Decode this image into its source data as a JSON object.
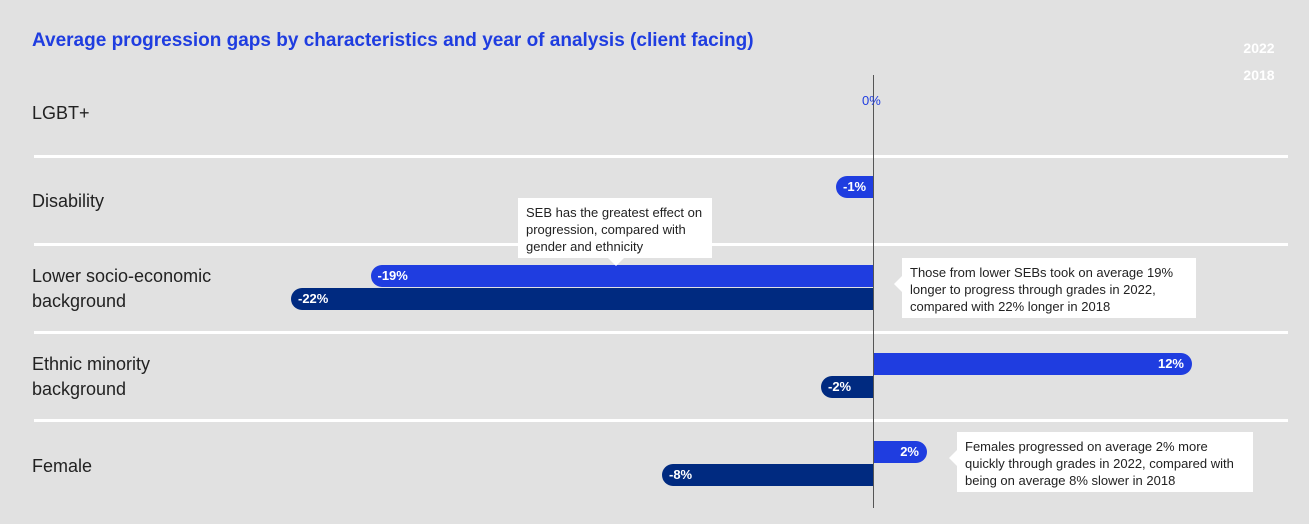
{
  "chart_data": {
    "type": "bar",
    "orientation": "horizontal",
    "title": "Average progression gaps by characteristics and year of analysis (client facing)",
    "zero_label": "0%",
    "categories": [
      "LGBT+",
      "Disability",
      "Lower socio-economic background",
      "Ethnic minority background",
      "Female"
    ],
    "series": [
      {
        "name": "2022",
        "color": "#1f3de0",
        "values": [
          null,
          -1,
          -19,
          12,
          2
        ]
      },
      {
        "name": "2018",
        "color": "#002a80",
        "values": [
          null,
          null,
          -22,
          -2,
          -8
        ]
      }
    ],
    "xlim": [
      -22,
      12
    ],
    "unit": "%",
    "legend_position": "top-right",
    "annotations": [
      "SEB has the greatest effect on progression, compared with gender and ethnicity",
      "Those from lower SEBs took on average 19% longer to progress through grades in 2022, compared with 22% longer in 2018",
      "Females progressed on average 2% more quickly through grades in 2022, compared with being on average 8% slower in 2018"
    ]
  }
}
